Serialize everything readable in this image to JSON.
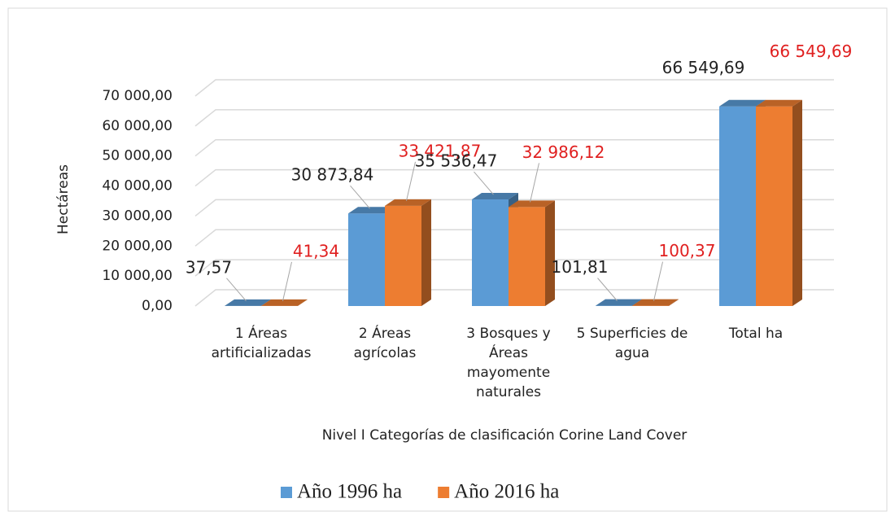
{
  "chart_data": {
    "type": "bar3d",
    "categories": [
      "1 Áreas artificializadas",
      "2  Áreas agrícolas",
      "3 Bosques y Áreas mayomente naturales",
      "5 Superficies de agua",
      "Total ha"
    ],
    "series": [
      {
        "name": "Año 1996 ha",
        "color": "#5b9bd5",
        "label_color": "#222222",
        "values": [
          37.57,
          30873.84,
          35536.47,
          101.81,
          66549.69
        ],
        "value_labels": [
          "37,57",
          "30 873,84",
          "35 536,47",
          "101,81",
          "66 549,69"
        ]
      },
      {
        "name": "Año 2016 ha",
        "color": "#ed7d31",
        "label_color": "#e02020",
        "values": [
          41.34,
          33421.87,
          32986.12,
          100.37,
          66549.69
        ],
        "value_labels": [
          "41,34",
          "33 421,87",
          "32 986,12",
          "100,37",
          "66 549,69"
        ]
      }
    ],
    "y_label": "Hectáreas",
    "x_label": "Nivel I Categorías de clasificación Corine Land Cover",
    "ylim": [
      0,
      70000
    ],
    "yticks": [
      {
        "value": 0,
        "label": "0,00"
      },
      {
        "value": 10000,
        "label": "10 000,00"
      },
      {
        "value": 20000,
        "label": "20 000,00"
      },
      {
        "value": 30000,
        "label": "30 000,00"
      },
      {
        "value": 40000,
        "label": "40 000,00"
      },
      {
        "value": 50000,
        "label": "50 000,00"
      },
      {
        "value": 60000,
        "label": "60 000,00"
      },
      {
        "value": 70000,
        "label": "70 000,00"
      }
    ],
    "grid": true,
    "legend": "bottom"
  }
}
